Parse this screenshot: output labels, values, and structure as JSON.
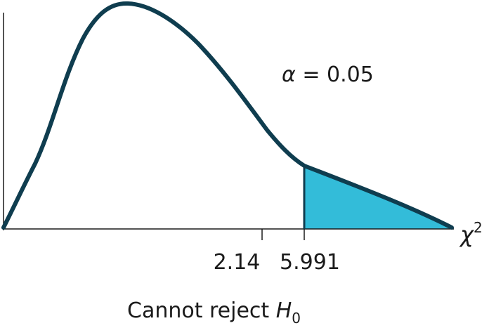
{
  "figure": {
    "alpha_symbol": "α",
    "alpha_text": " = 0.05",
    "axis_symbol": "χ",
    "axis_superscript": "2",
    "test_stat_tick": "2.14",
    "critical_tick": "5.991",
    "conclusion_text": "Cannot reject ",
    "conclusion_h": "H",
    "conclusion_sub": "0"
  },
  "colors": {
    "curve": "#0f3d4f",
    "rejection_fill": "#33bcd9",
    "axis": "#1a1a1a"
  }
}
